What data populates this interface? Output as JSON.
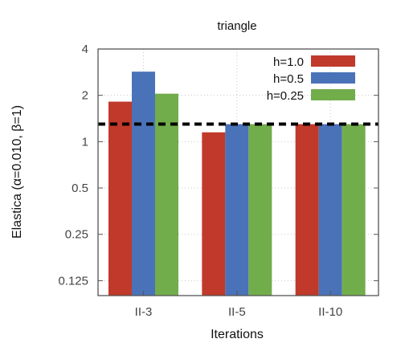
{
  "chart_data": {
    "type": "bar",
    "title": "triangle",
    "xlabel": "Iterations",
    "ylabel": "Elastica (α=0.010, β=1)",
    "yscale": "log2",
    "ylim": [
      0.1,
      4
    ],
    "yticks": [
      0.125,
      0.25,
      0.5,
      1,
      2,
      4
    ],
    "ytick_labels": [
      "0.125",
      "0.25",
      "0.5",
      "1",
      "2",
      "4"
    ],
    "categories": [
      "II-3",
      "II-5",
      "II-10"
    ],
    "series": [
      {
        "name": "h=1.0",
        "color": "#c0392b",
        "values": [
          1.82,
          1.15,
          1.3
        ]
      },
      {
        "name": "h=0.5",
        "color": "#4a72b8",
        "values": [
          2.85,
          1.3,
          1.3
        ]
      },
      {
        "name": "h=0.25",
        "color": "#72ad4c",
        "values": [
          2.05,
          1.3,
          1.3
        ]
      }
    ],
    "reference_line": {
      "y": 1.3,
      "style": "dashed",
      "color": "#000000"
    },
    "grid": true,
    "legend_position": "top-right"
  }
}
